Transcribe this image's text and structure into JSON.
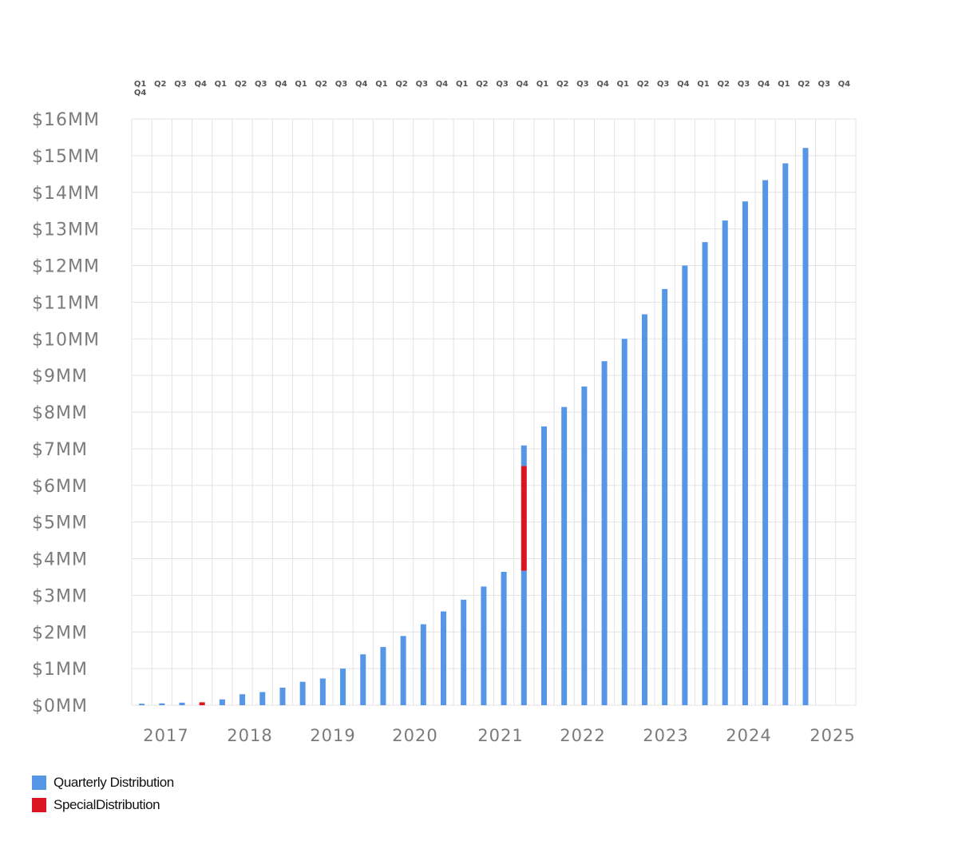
{
  "chart_data": {
    "type": "bar",
    "stacked": true,
    "grid": true,
    "legend_position": "bottom-left",
    "colors": {
      "quarterly": "#5696e6",
      "special": "#db1521",
      "grid": "#e3e3e3",
      "axis_text": "#7b7b7b",
      "quarter_text": "#555555"
    },
    "ylim": [
      0,
      16
    ],
    "y_ticks": [
      {
        "value": 0,
        "label": "$0MM"
      },
      {
        "value": 1,
        "label": "$1MM"
      },
      {
        "value": 2,
        "label": "$2MM"
      },
      {
        "value": 3,
        "label": "$3MM"
      },
      {
        "value": 4,
        "label": "$4MM"
      },
      {
        "value": 5,
        "label": "$5MM"
      },
      {
        "value": 6,
        "label": "$6MM"
      },
      {
        "value": 7,
        "label": "$7MM"
      },
      {
        "value": 8,
        "label": "$8MM"
      },
      {
        "value": 9,
        "label": "$9MM"
      },
      {
        "value": 10,
        "label": "$10MM"
      },
      {
        "value": 11,
        "label": "$11MM"
      },
      {
        "value": 12,
        "label": "$12MM"
      },
      {
        "value": 13,
        "label": "$13MM"
      },
      {
        "value": 14,
        "label": "$14MM"
      },
      {
        "value": 15,
        "label": "$15MM"
      },
      {
        "value": 16,
        "label": "$16MM"
      }
    ],
    "years": [
      "2017",
      "2018",
      "2019",
      "2020",
      "2021",
      "2022",
      "2023",
      "2024",
      "2025"
    ],
    "quarter_labels": [
      "Q1",
      "Q2",
      "Q3",
      "Q4",
      "Q1",
      "Q2",
      "Q3",
      "Q4",
      "Q1",
      "Q2",
      "Q3",
      "Q4",
      "Q1",
      "Q2",
      "Q3",
      "Q4",
      "Q1",
      "Q2",
      "Q3",
      "Q4",
      "Q1",
      "Q2",
      "Q3",
      "Q4",
      "Q1",
      "Q2",
      "Q3",
      "Q4",
      "Q1",
      "Q2",
      "Q3",
      "Q4",
      "Q1",
      "Q2",
      "Q3",
      "Q4"
    ],
    "categories": [
      "2017 Q1",
      "2017 Q2",
      "2017 Q3",
      "2017 Q4",
      "2018 Q1",
      "2018 Q2",
      "2018 Q3",
      "2018 Q4",
      "2019 Q1",
      "2019 Q2",
      "2019 Q3",
      "2019 Q4",
      "2020 Q1",
      "2020 Q2",
      "2020 Q3",
      "2020 Q4",
      "2021 Q1",
      "2021 Q2",
      "2021 Q3",
      "2021 Q4",
      "2022 Q1",
      "2022 Q2",
      "2022 Q3",
      "2022 Q4",
      "2023 Q1",
      "2023 Q2",
      "2023 Q3",
      "2023 Q4",
      "2024 Q1",
      "2024 Q2",
      "2024 Q3",
      "2024 Q4",
      "2025 Q1",
      "2025 Q2",
      "2025 Q3",
      "2025 Q4"
    ],
    "series": [
      {
        "name": "Quarterly Distribution",
        "color": "#5696e6",
        "values": [
          0.04,
          0.05,
          0.07,
          0.0,
          0.16,
          0.3,
          0.36,
          0.48,
          0.64,
          0.73,
          1.0,
          1.39,
          1.59,
          1.89,
          2.21,
          2.56,
          2.88,
          3.24,
          3.64,
          3.67,
          7.61,
          8.14,
          8.7,
          9.39,
          10.0,
          10.67,
          11.36,
          12.0,
          12.64,
          13.23,
          13.75,
          14.33,
          14.79,
          15.21,
          0,
          0
        ]
      },
      {
        "name": "SpecialDistribution",
        "color": "#db1521",
        "values": [
          0,
          0,
          0,
          0.08,
          0,
          0,
          0,
          0,
          0,
          0,
          0,
          0,
          0,
          0,
          0,
          0,
          0,
          0,
          0,
          2.86,
          0,
          0,
          0,
          0,
          0,
          0,
          0,
          0,
          0,
          0,
          0,
          0,
          0,
          0,
          0,
          0
        ]
      },
      {
        "name": "Quarterly Distribution",
        "color": "#5696e6",
        "values": [
          0,
          0,
          0,
          0,
          0,
          0,
          0,
          0,
          0,
          0,
          0,
          0,
          0,
          0,
          0,
          0,
          0,
          0,
          0,
          0.56,
          0,
          0,
          0,
          0,
          0,
          0,
          0,
          0,
          0,
          0,
          0,
          0,
          0,
          0,
          0,
          0
        ]
      }
    ]
  },
  "legend": {
    "items": [
      {
        "label": "Quarterly Distribution",
        "color": "#5696e6"
      },
      {
        "label": "SpecialDistribution",
        "color": "#db1521"
      }
    ]
  }
}
